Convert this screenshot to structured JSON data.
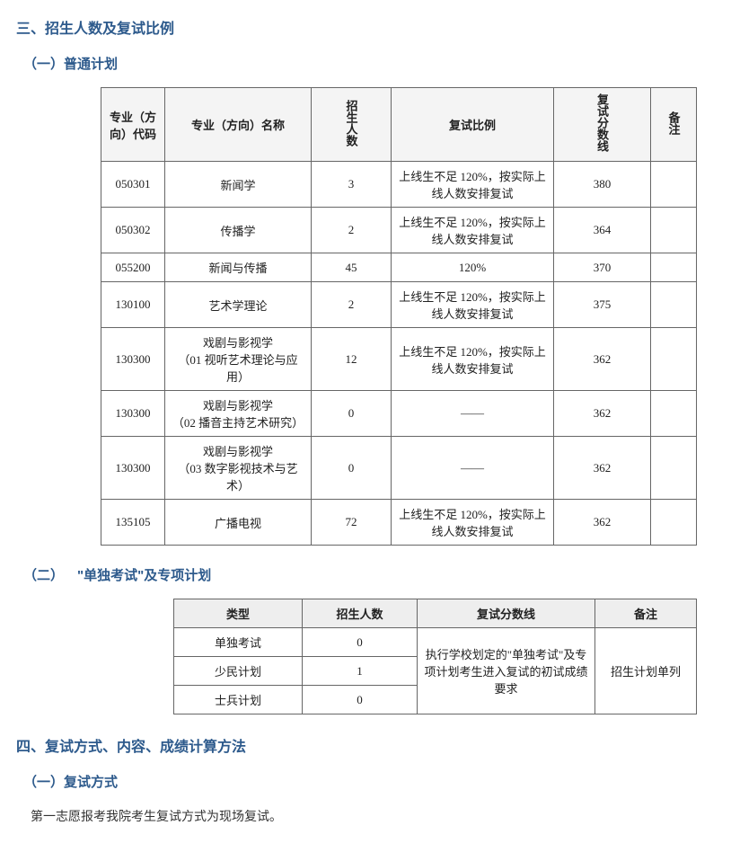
{
  "section3": {
    "title": "三、招生人数及复试比例",
    "sub1": {
      "title": "（一）普通计划",
      "table": {
        "headers": {
          "code": "专业（方向）代码",
          "name": "专业（方向）名称",
          "count": "招生人数",
          "ratio": "复试比例",
          "score": "复试分数线",
          "note": "备注"
        },
        "rows": [
          {
            "code": "050301",
            "name": "新闻学",
            "count": "3",
            "ratio": "上线生不足 120%，按实际上线人数安排复试",
            "score": "380",
            "note": ""
          },
          {
            "code": "050302",
            "name": "传播学",
            "count": "2",
            "ratio": "上线生不足 120%，按实际上线人数安排复试",
            "score": "364",
            "note": ""
          },
          {
            "code": "055200",
            "name": "新闻与传播",
            "count": "45",
            "ratio": "120%",
            "score": "370",
            "note": ""
          },
          {
            "code": "130100",
            "name": "艺术学理论",
            "count": "2",
            "ratio": "上线生不足 120%，按实际上线人数安排复试",
            "score": "375",
            "note": ""
          },
          {
            "code": "130300",
            "name": "戏剧与影视学\n（01 视听艺术理论与应用）",
            "count": "12",
            "ratio": "上线生不足 120%，按实际上线人数安排复试",
            "score": "362",
            "note": ""
          },
          {
            "code": "130300",
            "name": "戏剧与影视学\n（02 播音主持艺术研究）",
            "count": "0",
            "ratio": "——",
            "score": "362",
            "note": ""
          },
          {
            "code": "130300",
            "name": "戏剧与影视学\n（03 数字影视技术与艺术）",
            "count": "0",
            "ratio": "——",
            "score": "362",
            "note": ""
          },
          {
            "code": "135105",
            "name": "广播电视",
            "count": "72",
            "ratio": "上线生不足 120%，按实际上线人数安排复试",
            "score": "362",
            "note": ""
          }
        ]
      }
    },
    "sub2": {
      "title": "（二） \"单独考试\"及专项计划",
      "table": {
        "headers": {
          "type": "类型",
          "count": "招生人数",
          "score": "复试分数线",
          "note": "备注"
        },
        "rows": [
          {
            "type": "单独考试",
            "count": "0"
          },
          {
            "type": "少民计划",
            "count": "1"
          },
          {
            "type": "士兵计划",
            "count": "0"
          }
        ],
        "score_merged": "执行学校划定的\"单独考试\"及专项计划考生进入复试的初试成绩要求",
        "note_merged": "招生计划单列"
      }
    }
  },
  "section4": {
    "title": "四、复试方式、内容、成绩计算方法",
    "sub1": {
      "title": "（一）复试方式",
      "body": "第一志愿报考我院考生复试方式为现场复试。"
    }
  },
  "colors": {
    "heading": "#2d5a8c",
    "text": "#333333",
    "border": "#666666",
    "th_bg_1": "#f4f4f4",
    "th_bg_2": "#eeeeee",
    "page_bg": "#ffffff"
  }
}
